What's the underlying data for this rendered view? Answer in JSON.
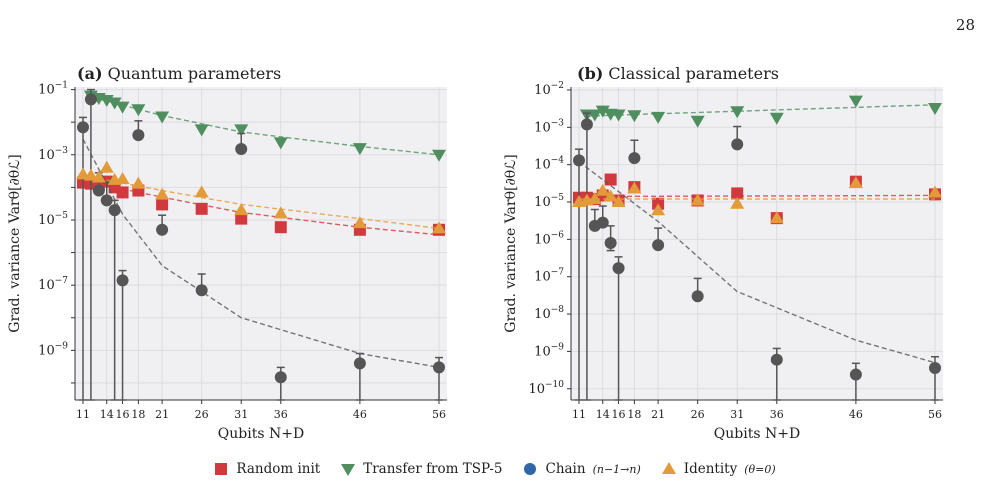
{
  "page_number": "28",
  "panels": [
    {
      "tag": "(a)",
      "title": "Quantum parameters"
    },
    {
      "tag": "(b)",
      "title": "Classical parameters"
    }
  ],
  "ylabel": "Grad. variance Varθ[∂θℒ]",
  "xlabel": "Qubits N+D",
  "legend": [
    {
      "key": "random",
      "label": "Random init",
      "color": "#d0393e",
      "marker": "square"
    },
    {
      "key": "transfer",
      "label": "Transfer from TSP-5",
      "color": "#4f8f5f",
      "marker": "triangle-down"
    },
    {
      "key": "chain",
      "label": "Chain",
      "suffix": "(n−1→n)",
      "color": "#2f66a6",
      "marker": "circle"
    },
    {
      "key": "identity",
      "label": "Identity",
      "suffix": "(θ=0)",
      "color": "#e39a39",
      "marker": "triangle-up"
    }
  ],
  "chart_data": [
    {
      "type": "scatter",
      "title": "(a) Quantum parameters",
      "xlabel": "Qubits N+D",
      "ylabel": "Grad. variance Varθ[∂θℒ]",
      "yscale": "log",
      "ylim": [
        3e-11,
        0.12
      ],
      "xlim": [
        10,
        57
      ],
      "xticks": [
        11,
        14,
        16,
        18,
        21,
        26,
        31,
        36,
        46,
        56
      ],
      "yticks": [
        "10^-1",
        "10^-3",
        "10^-5",
        "10^-7",
        "10^-9"
      ],
      "grid": true,
      "series": [
        {
          "name": "Random init",
          "x": [
            11,
            12,
            13,
            14,
            15,
            16,
            18,
            21,
            26,
            31,
            36,
            46,
            56
          ],
          "y": [
            0.00014,
            0.00013,
            0.00012,
            0.00015,
            0.0001,
            7e-05,
            8e-05,
            3e-05,
            2.2e-05,
            1.1e-05,
            6e-06,
            5e-06,
            5e-06
          ],
          "trend": [
            [
              11,
              0.00016
            ],
            [
              21,
              5e-05
            ],
            [
              31,
              1.7e-05
            ],
            [
              46,
              6e-06
            ],
            [
              56,
              3.5e-06
            ]
          ]
        },
        {
          "name": "Transfer from TSP-5",
          "x": [
            12,
            13,
            14,
            15,
            16,
            18,
            21,
            26,
            31,
            36,
            46,
            56
          ],
          "y": [
            0.065,
            0.055,
            0.048,
            0.04,
            0.03,
            0.025,
            0.015,
            0.006,
            0.006,
            0.0024,
            0.0016,
            0.001
          ],
          "trend": [
            [
              12,
              0.06
            ],
            [
              21,
              0.016
            ],
            [
              31,
              0.005
            ],
            [
              46,
              0.0018
            ],
            [
              56,
              0.001
            ]
          ]
        },
        {
          "name": "Chain",
          "x": [
            11,
            12,
            13,
            14,
            15,
            16,
            18,
            21,
            26,
            31,
            36,
            46,
            56
          ],
          "y": [
            0.007,
            0.05,
            8e-05,
            4e-05,
            2e-05,
            1.4e-07,
            0.004,
            5e-06,
            7e-08,
            0.0015,
            1.5e-10,
            4e-10,
            3e-10
          ],
          "err": [
            [
              0.007,
              0.007
            ],
            [
              0.05,
              0.05
            ],
            [
              1.5e-05,
              0.0002
            ],
            [
              5e-06,
              0.0001
            ],
            [
              2e-05,
              2e-05
            ],
            [
              1.4e-07,
              1.4e-07
            ],
            [
              8e-08,
              0.007
            ],
            [
              3e-07,
              9e-06
            ],
            [
              1.2e-08,
              1.5e-07
            ],
            [
              8e-10,
              0.003
            ],
            [
              1.5e-10,
              1.5e-10
            ],
            [
              4e-10,
              4e-10
            ],
            [
              3e-10,
              3e-10
            ]
          ],
          "trend": [
            [
              11,
              0.003
            ],
            [
              16,
              1.5e-05
            ],
            [
              21,
              4e-07
            ],
            [
              31,
              1e-08
            ],
            [
              46,
              8e-10
            ],
            [
              56,
              3e-10
            ]
          ]
        },
        {
          "name": "Identity (θ=0)",
          "x": [
            11,
            12,
            13,
            14,
            15,
            16,
            18,
            21,
            26,
            31,
            36,
            46,
            56
          ],
          "y": [
            0.00025,
            0.00023,
            0.0002,
            0.0004,
            0.00017,
            0.00018,
            0.00013,
            6e-05,
            7e-05,
            2e-05,
            1.6e-05,
            8e-06,
            5.5e-06
          ],
          "trend": [
            [
              11,
              0.00023
            ],
            [
              21,
              8e-05
            ],
            [
              31,
              3e-05
            ],
            [
              46,
              1.1e-05
            ],
            [
              56,
              5.5e-06
            ]
          ]
        }
      ]
    },
    {
      "type": "scatter",
      "title": "(b) Classical parameters",
      "xlabel": "Qubits N+D",
      "ylabel": "Grad. variance Varθ[∂θℒ]",
      "yscale": "log",
      "ylim": [
        5e-11,
        0.012
      ],
      "xlim": [
        10,
        57
      ],
      "xticks": [
        11,
        14,
        16,
        18,
        21,
        26,
        31,
        36,
        46,
        56
      ],
      "yticks": [
        "10^-2",
        "10^-3",
        "10^-4",
        "10^-5",
        "10^-6",
        "10^-7",
        "10^-8",
        "10^-9",
        "10^-10"
      ],
      "grid": true,
      "series": [
        {
          "name": "Random init",
          "x": [
            11,
            12,
            13,
            14,
            15,
            16,
            18,
            21,
            26,
            31,
            36,
            46,
            56
          ],
          "y": [
            1.3e-05,
            1.3e-05,
            1.2e-05,
            1.5e-05,
            4e-05,
            1.1e-05,
            2.5e-05,
            9e-06,
            1.1e-05,
            1.7e-05,
            3.7e-06,
            3.5e-05,
            1.6e-05
          ],
          "trend": [
            [
              11,
              1.4e-05
            ],
            [
              56,
              1.5e-05
            ]
          ]
        },
        {
          "name": "Transfer from TSP-5",
          "x": [
            12,
            13,
            14,
            15,
            16,
            18,
            21,
            26,
            31,
            36,
            46,
            56
          ],
          "y": [
            0.0022,
            0.0022,
            0.0028,
            0.0023,
            0.0022,
            0.0021,
            0.0019,
            0.0015,
            0.0027,
            0.0018,
            0.0052,
            0.0033
          ],
          "trend": [
            [
              12,
              0.002
            ],
            [
              31,
              0.0027
            ],
            [
              56,
              0.004
            ]
          ]
        },
        {
          "name": "Chain",
          "x": [
            11,
            12,
            13,
            14,
            15,
            16,
            18,
            21,
            26,
            31,
            36,
            46,
            56
          ],
          "y": [
            0.00013,
            0.0012,
            2.3e-06,
            2.8e-06,
            8e-07,
            1.7e-07,
            0.00015,
            7e-07,
            3e-08,
            0.00035,
            6e-10,
            2.4e-10,
            3.6e-10
          ],
          "err": [
            [
              0.00013,
              0.00013
            ],
            [
              0.0012,
              0.0012
            ],
            [
              4e-07,
              4e-06
            ],
            [
              3e-07,
              5e-06
            ],
            [
              3e-07,
              1.5e-06
            ],
            [
              1.7e-07,
              1.7e-07
            ],
            [
              3e-08,
              0.0003
            ],
            [
              5e-09,
              1.3e-06
            ],
            [
              5e-09,
              6e-08
            ],
            [
              9e-11,
              0.0007
            ],
            [
              6e-10,
              6e-10
            ],
            [
              2.4e-10,
              2.4e-10
            ],
            [
              3.6e-10,
              3.6e-10
            ]
          ],
          "trend": [
            [
              11,
              0.00012
            ],
            [
              21,
              3e-06
            ],
            [
              31,
              4e-08
            ],
            [
              46,
              2e-09
            ],
            [
              56,
              5e-10
            ]
          ]
        },
        {
          "name": "Identity (θ=0)",
          "x": [
            11,
            12,
            13,
            14,
            15,
            16,
            18,
            21,
            26,
            31,
            36,
            46,
            56
          ],
          "y": [
            1e-05,
            1.1e-05,
            1.2e-05,
            2e-05,
            1.4e-05,
            1e-05,
            2.3e-05,
            6e-06,
            1.1e-05,
            9e-06,
            3.7e-06,
            3.2e-05,
            1.8e-05
          ],
          "trend": [
            [
              11,
              1.2e-05
            ],
            [
              56,
              1.2e-05
            ]
          ]
        }
      ]
    }
  ]
}
